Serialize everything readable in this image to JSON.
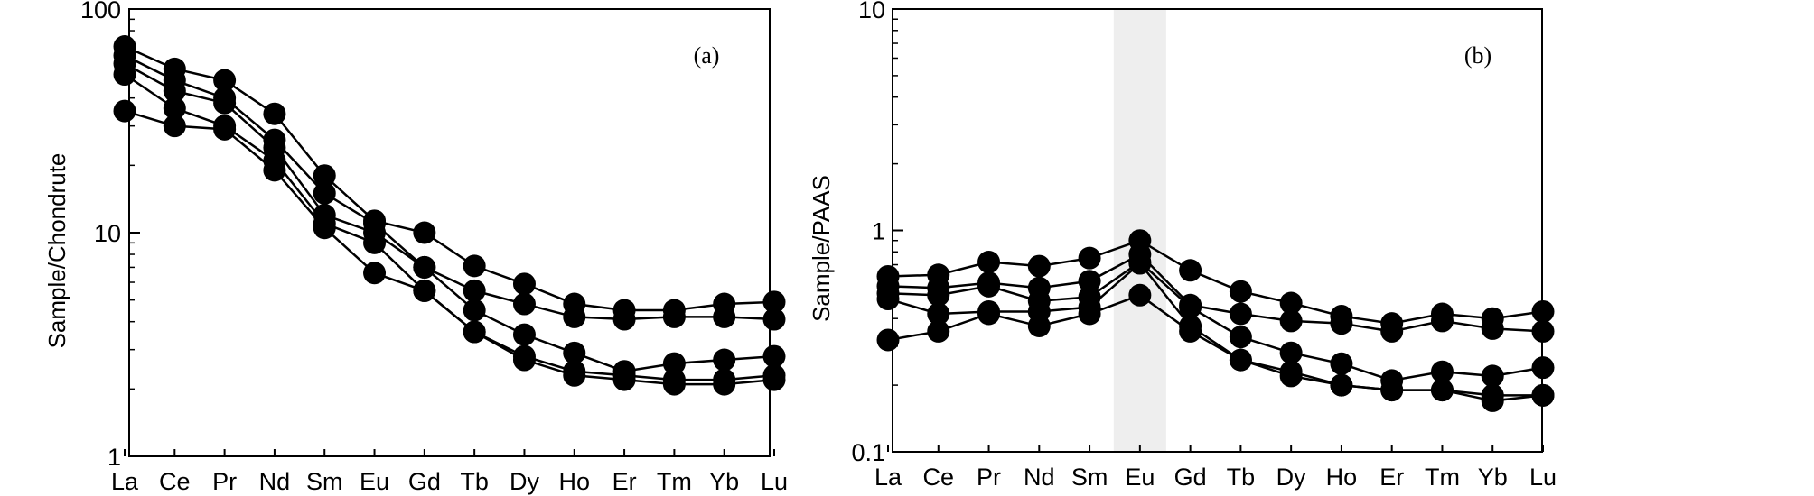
{
  "chart_data": [
    {
      "type": "line",
      "panel_label": "(a)",
      "ylabel": "Sample/Chondrute",
      "yscale": "log",
      "ylim": [
        1,
        100
      ],
      "yticks": [
        "1",
        "10",
        "100"
      ],
      "grid": false,
      "categories": [
        "La",
        "Ce",
        "Pr",
        "Nd",
        "Sm",
        "Eu",
        "Gd",
        "Tb",
        "Dy",
        "Ho",
        "Er",
        "Tm",
        "Yb",
        "Lu"
      ],
      "series": [
        {
          "values": [
            68,
            54,
            48,
            34,
            18,
            11.3,
            10,
            7.1,
            5.9,
            4.8,
            4.5,
            4.5,
            4.8,
            4.9
          ]
        },
        {
          "values": [
            62,
            48,
            40,
            26,
            15,
            11,
            7,
            5.5,
            4.8,
            4.2,
            4.1,
            4.2,
            4.2,
            4.1
          ]
        },
        {
          "values": [
            57,
            43,
            38,
            24,
            12,
            10,
            7,
            4.5,
            3.5,
            2.9,
            2.4,
            2.6,
            2.7,
            2.8
          ]
        },
        {
          "values": [
            51,
            36,
            30,
            21,
            11,
            9,
            5.5,
            3.6,
            2.8,
            2.4,
            2.3,
            2.2,
            2.2,
            2.3
          ]
        },
        {
          "values": [
            35,
            30,
            29,
            19,
            10.5,
            6.6,
            5.5,
            3.6,
            2.7,
            2.3,
            2.2,
            2.1,
            2.1,
            2.2
          ]
        }
      ]
    },
    {
      "type": "line",
      "panel_label": "(b)",
      "ylabel": "Sample/PAAS",
      "yscale": "log",
      "ylim": [
        0.1,
        10
      ],
      "yticks": [
        "0.1",
        "1",
        "10"
      ],
      "grid": false,
      "highlight_category": "Eu",
      "highlight_color": "#eeeeee",
      "categories": [
        "La",
        "Ce",
        "Pr",
        "Nd",
        "Sm",
        "Eu",
        "Gd",
        "Tb",
        "Dy",
        "Ho",
        "Er",
        "Tm",
        "Yb",
        "Lu"
      ],
      "series": [
        {
          "values": [
            0.62,
            0.63,
            0.72,
            0.69,
            0.75,
            0.9,
            0.66,
            0.53,
            0.47,
            0.41,
            0.38,
            0.42,
            0.4,
            0.43
          ]
        },
        {
          "values": [
            0.56,
            0.55,
            0.58,
            0.55,
            0.59,
            0.78,
            0.46,
            0.42,
            0.39,
            0.38,
            0.35,
            0.39,
            0.36,
            0.35
          ]
        },
        {
          "values": [
            0.52,
            0.51,
            0.56,
            0.48,
            0.5,
            0.72,
            0.45,
            0.33,
            0.28,
            0.25,
            0.21,
            0.23,
            0.22,
            0.24
          ]
        },
        {
          "values": [
            0.49,
            0.42,
            0.43,
            0.43,
            0.45,
            0.71,
            0.37,
            0.26,
            0.23,
            0.2,
            0.19,
            0.19,
            0.17,
            0.18
          ]
        },
        {
          "values": [
            0.32,
            0.35,
            0.42,
            0.37,
            0.42,
            0.51,
            0.35,
            0.26,
            0.22,
            0.2,
            0.19,
            0.19,
            0.18,
            0.18
          ]
        }
      ]
    }
  ]
}
